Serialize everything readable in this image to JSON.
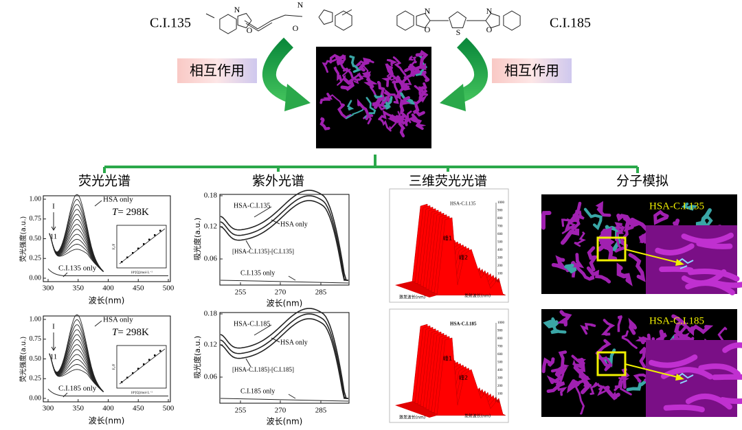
{
  "top": {
    "left_compound": "C.I.135",
    "right_compound": "C.I.185",
    "left_interaction": "相互作用",
    "right_interaction": "相互作用",
    "left_atoms": [
      "N",
      "O",
      "N",
      "O"
    ],
    "right_atoms": [
      "N",
      "O",
      "S",
      "N",
      "O"
    ]
  },
  "sections": [
    "荧光光谱",
    "紫外光谱",
    "三维荧光光谱",
    "分子模拟"
  ],
  "fluorescence": {
    "y_label": "荧光强度(a.u.)",
    "x_label": "波长(nm)",
    "yticks": [
      "0.00",
      "0.25",
      "0.50",
      "0.75",
      "1.00"
    ],
    "xticks": [
      "300",
      "350",
      "400",
      "450",
      "500"
    ],
    "inset_x_label": "10⁶[Q]/mol·L⁻¹",
    "inset_y_label": "F₀/F",
    "panels": [
      {
        "protein": "HSA only",
        "dye": "C.I.135 only",
        "temp_symbol": "T",
        "temp_value": "= 298K",
        "start": "I",
        "end": "11"
      },
      {
        "protein": "HSA only",
        "dye": "C.I.185 only",
        "temp_symbol": "T",
        "temp_value": "= 298K",
        "start": "I",
        "end": "11"
      }
    ]
  },
  "uv": {
    "y_label": "吸光度(a.u.)",
    "x_label": "波长(nm)",
    "yticks": [
      "0.18",
      "0.12",
      "0.06"
    ],
    "xticks": [
      "255",
      "270",
      "285"
    ],
    "panels": [
      {
        "complex": "HSA-C.I.135",
        "protein": "HSA only",
        "difference": "[HSA-C.I.135]-[C.I.135]",
        "dye": "C.I.135 only"
      },
      {
        "complex": "HSA-C.I.185",
        "protein": "HSA only",
        "difference": "[HSA-C.I.185]-[C.I.185]",
        "dye": "C.I.185 only"
      }
    ]
  },
  "three_d": {
    "excitation_label": "激发波长(nm)",
    "emission_label": "发射波长(nm)",
    "zticks": [
      "1000",
      "900",
      "800",
      "700",
      "600",
      "500",
      "400",
      "300",
      "200",
      "100",
      "0"
    ],
    "panels": [
      {
        "title": "HSA-C.I.135",
        "peak1": "峰1",
        "peak2": "峰2"
      },
      {
        "title": "HSA-C.I.185",
        "peak1": "峰1",
        "peak2": "峰2"
      }
    ]
  },
  "docking": {
    "panels": [
      "HSA-C.I.135",
      "HSA-C.I.185"
    ]
  }
}
